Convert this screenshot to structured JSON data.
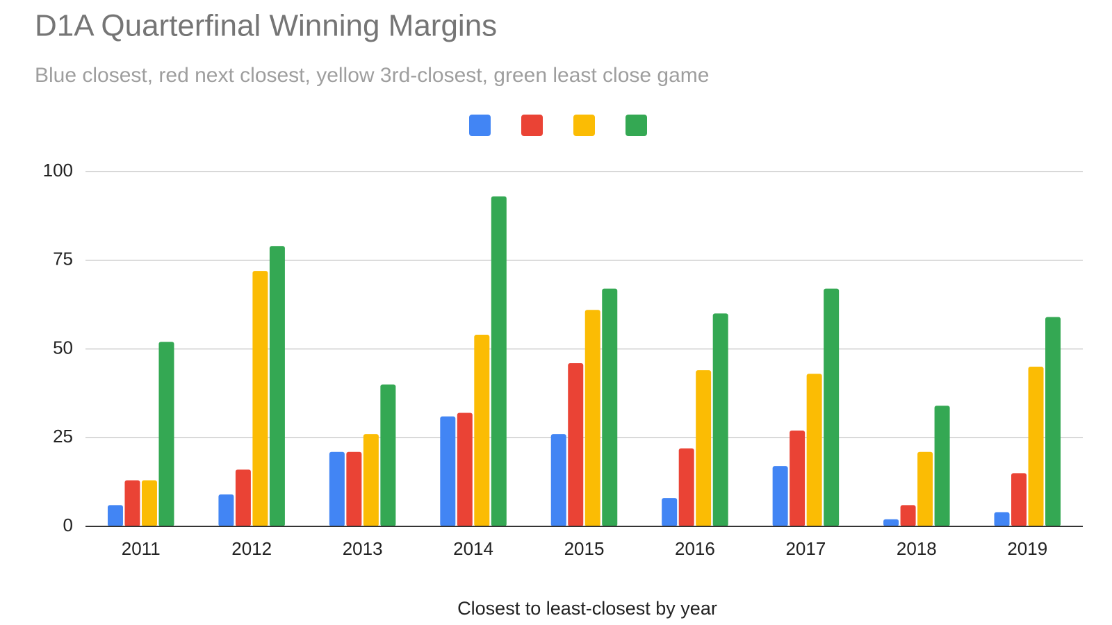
{
  "chart_data": {
    "type": "bar",
    "title": "D1A Quarterfinal Winning Margins",
    "subtitle": "Blue closest, red next closest, yellow 3rd-closest, green least close game",
    "x_label": "Closest to least-closest by year",
    "categories": [
      "2011",
      "2012",
      "2013",
      "2014",
      "2015",
      "2016",
      "2017",
      "2018",
      "2019"
    ],
    "series": [
      {
        "color": "#4285f4",
        "values": [
          6,
          9,
          21,
          31,
          26,
          8,
          17,
          2,
          4
        ]
      },
      {
        "color": "#ea4335",
        "values": [
          13,
          16,
          21,
          32,
          46,
          22,
          27,
          6,
          15
        ]
      },
      {
        "color": "#fbbc04",
        "values": [
          13,
          72,
          26,
          54,
          61,
          44,
          43,
          21,
          45
        ]
      },
      {
        "color": "#34a853",
        "values": [
          52,
          79,
          40,
          93,
          67,
          60,
          67,
          34,
          59
        ]
      }
    ],
    "ylim": [
      0,
      100
    ],
    "yticks": [
      0,
      25,
      50,
      75,
      100
    ],
    "grid": true,
    "legend": "top"
  }
}
